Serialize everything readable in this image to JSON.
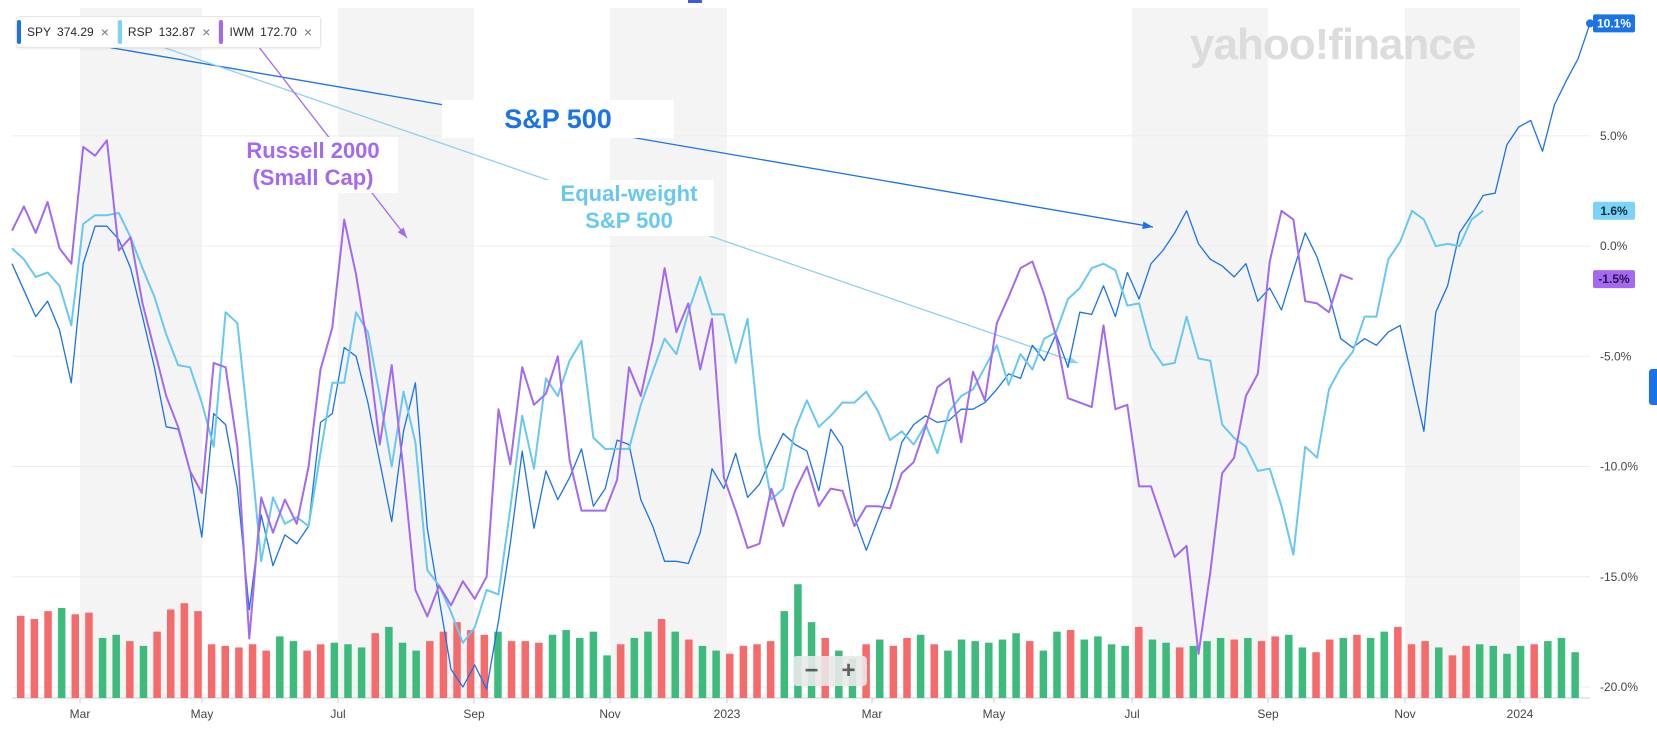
{
  "legend": [
    {
      "symbol": "SPY",
      "value": "374.29",
      "color": "#1a73e8",
      "close": "×"
    },
    {
      "symbol": "RSP",
      "value": "132.87",
      "color": "#7cd3f7",
      "close": "×"
    },
    {
      "symbol": "IWM",
      "value": "172.70",
      "color": "#a369f0",
      "close": "×"
    }
  ],
  "logo_text": "yahoo!finance",
  "annotations": {
    "sp500": "S&P 500",
    "russell_line1": "Russell 2000",
    "russell_line2": "(Small Cap)",
    "equal_line1": "Equal-weight",
    "equal_line2": "S&P 500"
  },
  "zoom": {
    "minus": "−",
    "plus": "+"
  },
  "colors": {
    "spy": "#1a73e8",
    "rsp": "#67c8f2",
    "iwm": "#a369f0",
    "volume_up": "#3dbb7c",
    "volume_down": "#f56a6a",
    "band": "#f4f4f5",
    "grid": "#ececec"
  },
  "chart_data": {
    "type": "line",
    "x_labels": [
      "Mar",
      "May",
      "Jul",
      "Sep",
      "Nov",
      "2023",
      "Mar",
      "May",
      "Jul",
      "Sep",
      "Nov",
      "2024"
    ],
    "y_ticks": [
      "5.0%",
      "0.0%",
      "-5.0%",
      "-10.0%",
      "-15.0%",
      "-20.0%"
    ],
    "y_tick_values": [
      5,
      0,
      -5,
      -10,
      -15,
      -20
    ],
    "ylim": [
      -20.5,
      10.8
    ],
    "grid": true,
    "series": [
      {
        "name": "SPY",
        "color": "#1a73e8",
        "last_label": "10.1%",
        "values": [
          -0.8,
          -2.0,
          -3.2,
          -2.5,
          -3.8,
          -6.2,
          -0.8,
          0.9,
          0.9,
          0.3,
          -1.0,
          -3.2,
          -5.5,
          -8.2,
          -8.3,
          -10.2,
          -13.2,
          -7.6,
          -8.1,
          -11.0,
          -16.5,
          -12.2,
          -14.5,
          -13.1,
          -13.5,
          -12.7,
          -8.0,
          -7.6,
          -4.6,
          -5.0,
          -7.1,
          -9.8,
          -12.5,
          -8.4,
          -6.2,
          -12.8,
          -16.0,
          -19.2,
          -20.0,
          -19.0,
          -20.1,
          -17.0,
          -13.5,
          -9.3,
          -12.8,
          -10.2,
          -11.5,
          -10.5,
          -9.2,
          -11.8,
          -11.0,
          -8.8,
          -9.0,
          -11.5,
          -12.7,
          -14.3,
          -14.3,
          -14.4,
          -13.0,
          -10.1,
          -11.0,
          -9.4,
          -11.4,
          -10.8,
          -9.6,
          -8.5,
          -9.0,
          -9.3,
          -11.1,
          -8.3,
          -9.1,
          -12.3,
          -13.8,
          -12.4,
          -11.0,
          -8.9,
          -8.1,
          -7.7,
          -8.0,
          -7.9,
          -7.4,
          -7.4,
          -7.1,
          -6.5,
          -5.8,
          -6.0,
          -4.5,
          -5.2,
          -4.0,
          -5.5,
          -3.0,
          -3.1,
          -1.8,
          -3.2,
          -1.2,
          -2.4,
          -0.8,
          -0.2,
          0.6,
          1.6,
          0.1,
          -0.6,
          -0.9,
          -1.4,
          -0.8,
          -2.5,
          -1.9,
          -2.9,
          -1.1,
          0.6,
          -0.5,
          -2.2,
          -4.2,
          -4.6,
          -4.2,
          -4.5,
          -3.9,
          -3.6,
          -6.0,
          -8.4,
          -3.0,
          -1.8,
          0.6,
          1.4,
          2.3,
          2.4,
          4.6,
          5.4,
          5.7,
          4.3,
          6.4,
          7.5,
          8.5,
          10.1
        ]
      },
      {
        "name": "RSP",
        "color": "#67c8f2",
        "last_label": "1.6%",
        "values": [
          -0.1,
          -0.6,
          -1.4,
          -1.2,
          -1.8,
          -3.6,
          1.0,
          1.4,
          1.4,
          1.5,
          0.4,
          -1.0,
          -2.3,
          -4.0,
          -5.4,
          -5.5,
          -7.1,
          -9.1,
          -3.0,
          -3.5,
          -8.6,
          -14.3,
          -11.4,
          -12.6,
          -12.3,
          -12.7,
          -9.4,
          -6.2,
          -6.2,
          -3.0,
          -3.9,
          -6.8,
          -10.0,
          -6.6,
          -8.9,
          -14.7,
          -15.4,
          -16.6,
          -18.0,
          -17.3,
          -15.6,
          -15.8,
          -11.9,
          -7.7,
          -10.1,
          -6.0,
          -6.8,
          -5.2,
          -4.3,
          -8.7,
          -9.2,
          -9.2,
          -9.2,
          -7.2,
          -5.7,
          -4.2,
          -4.9,
          -3.0,
          -1.4,
          -3.1,
          -3.1,
          -5.3,
          -3.3,
          -8.6,
          -11.5,
          -11.0,
          -8.3,
          -7.0,
          -8.2,
          -7.7,
          -7.1,
          -7.1,
          -6.6,
          -7.5,
          -8.8,
          -8.4,
          -9.0,
          -8.1,
          -9.4,
          -7.5,
          -6.8,
          -6.5,
          -5.5,
          -4.5,
          -6.3,
          -4.9,
          -5.6,
          -4.2,
          -3.9,
          -2.4,
          -1.9,
          -1.0,
          -0.8,
          -1.1,
          -2.7,
          -2.6,
          -4.6,
          -5.4,
          -5.3,
          -3.2,
          -5.1,
          -5.2,
          -8.1,
          -8.7,
          -9.1,
          -10.2,
          -10.1,
          -11.8,
          -14.0,
          -9.1,
          -9.6,
          -6.5,
          -5.5,
          -4.8,
          -3.2,
          -3.2,
          -0.6,
          0.2,
          1.6,
          1.2,
          0.0,
          0.1,
          0.0,
          1.2,
          1.6
        ]
      },
      {
        "name": "IWM",
        "color": "#a369f0",
        "last_label": "-1.5%",
        "values": [
          0.7,
          1.8,
          0.6,
          2.0,
          -0.1,
          -0.8,
          4.5,
          4.1,
          4.8,
          -0.2,
          0.4,
          -2.6,
          -4.7,
          -6.8,
          -8.2,
          -10.2,
          -11.2,
          -5.3,
          -5.5,
          -9.1,
          -17.8,
          -11.4,
          -13.0,
          -11.5,
          -12.6,
          -10.0,
          -5.6,
          -3.7,
          1.2,
          -1.3,
          -4.6,
          -9.0,
          -5.4,
          -10.2,
          -15.6,
          -16.8,
          -15.4,
          -16.3,
          -15.2,
          -16.0,
          -15.0,
          -7.4,
          -9.9,
          -5.5,
          -7.2,
          -6.7,
          -5.0,
          -9.7,
          -12.0,
          -12.0,
          -12.0,
          -10.6,
          -5.5,
          -6.8,
          -4.3,
          -1.0,
          -3.9,
          -2.6,
          -5.6,
          -3.3,
          -10.5,
          -12.0,
          -13.7,
          -13.5,
          -11.0,
          -12.7,
          -11.1,
          -10.0,
          -11.8,
          -11.0,
          -11.1,
          -12.7,
          -11.8,
          -11.8,
          -11.9,
          -10.3,
          -9.8,
          -8.2,
          -6.4,
          -6.0,
          -8.9,
          -5.7,
          -7.0,
          -3.5,
          -2.3,
          -1.0,
          -0.7,
          -2.2,
          -4.1,
          -6.9,
          -7.1,
          -7.3,
          -3.6,
          -7.4,
          -7.2,
          -10.9,
          -10.9,
          -12.5,
          -14.1,
          -13.6,
          -18.5,
          -14.8,
          -10.3,
          -9.6,
          -6.8,
          -5.8,
          -0.7,
          1.6,
          1.2,
          -2.5,
          -2.6,
          -3.0,
          -1.3,
          -1.5
        ]
      }
    ],
    "volume": {
      "ymax": 1.0,
      "up": [
        0,
        0,
        0,
        1,
        0,
        0,
        1,
        1,
        0,
        1,
        0,
        0,
        0,
        0,
        0,
        0,
        0,
        0,
        0,
        1,
        1,
        0,
        0,
        1,
        1,
        1,
        0,
        1,
        1,
        1,
        0,
        0,
        0,
        0,
        0,
        1,
        0,
        0,
        0,
        1,
        1,
        1,
        1,
        1,
        0,
        1,
        1,
        0,
        1,
        0,
        1,
        1,
        0,
        0,
        0,
        0,
        1,
        1,
        1,
        0,
        1,
        1,
        0,
        1,
        0,
        0,
        1,
        0,
        1,
        1,
        1,
        1,
        1,
        1,
        0,
        1,
        1,
        0,
        1,
        1,
        1,
        1,
        0,
        1,
        1,
        0,
        1,
        1,
        1,
        0,
        1,
        0,
        0,
        1,
        1,
        0,
        0,
        1,
        0,
        1,
        1,
        0,
        0,
        0,
        1,
        0,
        0,
        1,
        1,
        1,
        1,
        0,
        1,
        1,
        1
      ],
      "values": [
        0.52,
        0.5,
        0.55,
        0.57,
        0.53,
        0.54,
        0.38,
        0.4,
        0.36,
        0.33,
        0.42,
        0.56,
        0.6,
        0.55,
        0.34,
        0.33,
        0.32,
        0.34,
        0.3,
        0.39,
        0.36,
        0.3,
        0.34,
        0.35,
        0.34,
        0.32,
        0.41,
        0.45,
        0.35,
        0.3,
        0.36,
        0.42,
        0.48,
        0.43,
        0.4,
        0.42,
        0.36,
        0.36,
        0.35,
        0.4,
        0.43,
        0.38,
        0.42,
        0.27,
        0.34,
        0.38,
        0.42,
        0.5,
        0.42,
        0.37,
        0.33,
        0.3,
        0.28,
        0.33,
        0.34,
        0.36,
        0.55,
        0.72,
        0.48,
        0.38,
        0.3,
        0.25,
        0.34,
        0.37,
        0.33,
        0.38,
        0.4,
        0.34,
        0.3,
        0.37,
        0.36,
        0.35,
        0.37,
        0.41,
        0.36,
        0.3,
        0.42,
        0.43,
        0.37,
        0.39,
        0.34,
        0.33,
        0.45,
        0.37,
        0.35,
        0.32,
        0.33,
        0.36,
        0.38,
        0.37,
        0.38,
        0.36,
        0.39,
        0.4,
        0.32,
        0.29,
        0.37,
        0.38,
        0.4,
        0.38,
        0.42,
        0.45,
        0.34,
        0.36,
        0.32,
        0.27,
        0.33,
        0.34,
        0.33,
        0.28,
        0.33,
        0.34,
        0.36,
        0.38,
        0.29
      ]
    }
  }
}
